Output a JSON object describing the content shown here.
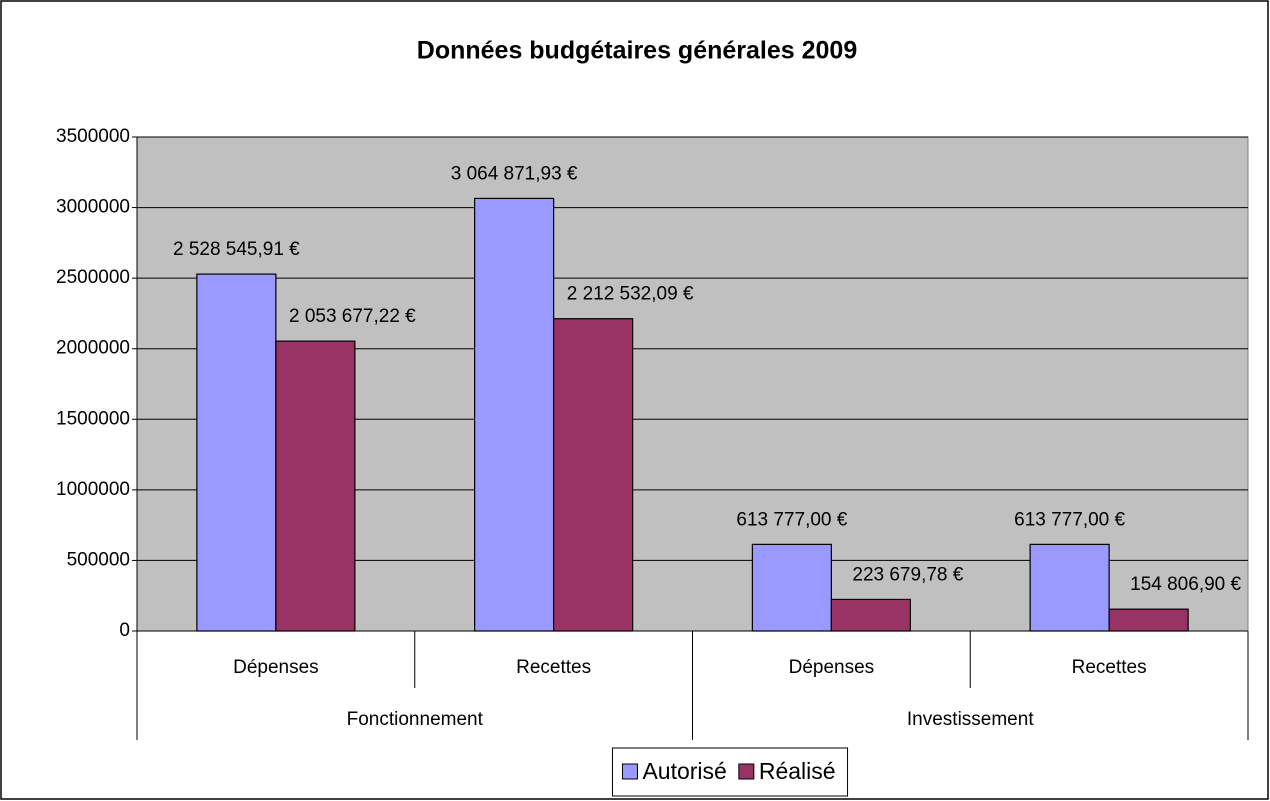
{
  "chart_data": {
    "type": "bar",
    "title": "Données budgétaires générales 2009",
    "categories": [
      "Dépenses",
      "Recettes",
      "Dépenses",
      "Recettes"
    ],
    "groups": [
      "Fonctionnement",
      "Investissement"
    ],
    "series": [
      {
        "name": "Autorisé",
        "color": "#9999ff",
        "values": [
          2528545.91,
          3064871.93,
          613777.0,
          613777.0
        ],
        "value_labels": [
          "2 528 545,91 €",
          "3 064 871,93 €",
          "613 777,00 €",
          "613 777,00 €"
        ]
      },
      {
        "name": "Réalisé",
        "color": "#993366",
        "values": [
          2053677.22,
          2212532.09,
          223679.78,
          154806.9
        ],
        "value_labels": [
          "2 053 677,22 €",
          "2 212 532,09 €",
          "223 679,78 €",
          "154 806,90 €"
        ]
      }
    ],
    "ylim": [
      0,
      3500000
    ],
    "yticks": [
      0,
      500000,
      1000000,
      1500000,
      2000000,
      2500000,
      3000000,
      3500000
    ],
    "grid": true,
    "legend": "bottom",
    "plot_background": "#c0c0c0"
  }
}
